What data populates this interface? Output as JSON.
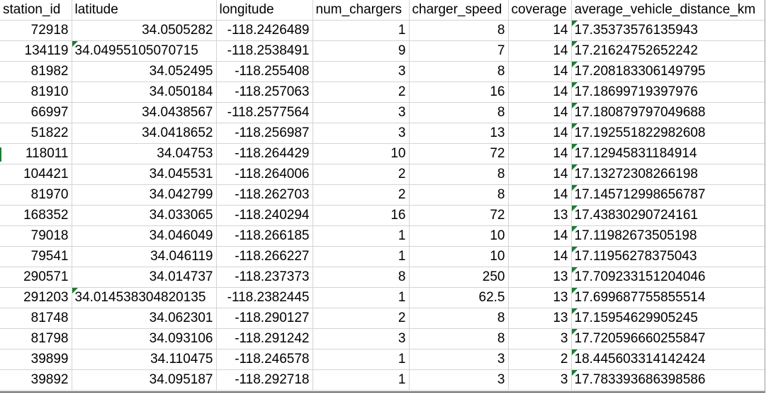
{
  "sheet": {
    "headers": [
      "station_id",
      "latitude",
      "longitude",
      "num_chargers",
      "charger_speed",
      "coverage",
      "average_vehicle_distance_km"
    ],
    "rows": [
      [
        "72918",
        "34.0505282",
        "-118.2426489",
        "1",
        "8",
        "14",
        "17.35373576135943"
      ],
      [
        "134119",
        "34.04955105070715",
        "-118.2538491",
        "9",
        "7",
        "14",
        "17.21624752652242"
      ],
      [
        "81982",
        "34.052495",
        "-118.255408",
        "3",
        "8",
        "14",
        "17.208183306149795"
      ],
      [
        "81910",
        "34.050184",
        "-118.257063",
        "2",
        "16",
        "14",
        "17.18699719397976"
      ],
      [
        "66997",
        "34.0438567",
        "-118.2577564",
        "3",
        "8",
        "14",
        "17.180879797049688"
      ],
      [
        "51822",
        "34.0418652",
        "-118.256987",
        "3",
        "13",
        "14",
        "17.19255182298260 8"
      ],
      [
        "118011",
        "34.04753",
        "-118.264429",
        "10",
        "72",
        "14",
        "17.12945831184914"
      ],
      [
        "104421",
        "34.045531",
        "-118.264006",
        "2",
        "8",
        "14",
        "17.13272308266198"
      ],
      [
        "81970",
        "34.042799",
        "-118.262703",
        "2",
        "8",
        "14",
        "17.145712998656787"
      ],
      [
        "168352",
        "34.033065",
        "-118.240294",
        "16",
        "72",
        "13",
        "17.43830290724161"
      ],
      [
        "79018",
        "34.046049",
        "-118.266185",
        "1",
        "10",
        "14",
        "17.11982673505198"
      ],
      [
        "79541",
        "34.046119",
        "-118.266227",
        "1",
        "10",
        "14",
        "17.11956278375043"
      ],
      [
        "290571",
        "34.014737",
        "-118.237373",
        "8",
        "250",
        "13",
        "17.709233151204046"
      ],
      [
        "291203",
        "34.014538304820135",
        "-118.2382445",
        "1",
        "62.5",
        "13",
        "17.699687755855514"
      ],
      [
        "81748",
        "34.062301",
        "-118.290127",
        "2",
        "8",
        "13",
        "17.15954629905245"
      ],
      [
        "81798",
        "34.093106",
        "-118.291242",
        "3",
        "8",
        "3",
        "17.720596660255847"
      ],
      [
        "39899",
        "34.110475",
        "-118.246578",
        "1",
        "3",
        "2",
        "18.445603314142424"
      ],
      [
        "39892",
        "34.095187",
        "-118.292718",
        "1",
        "3",
        "3",
        "17.783393686398586"
      ]
    ]
  }
}
